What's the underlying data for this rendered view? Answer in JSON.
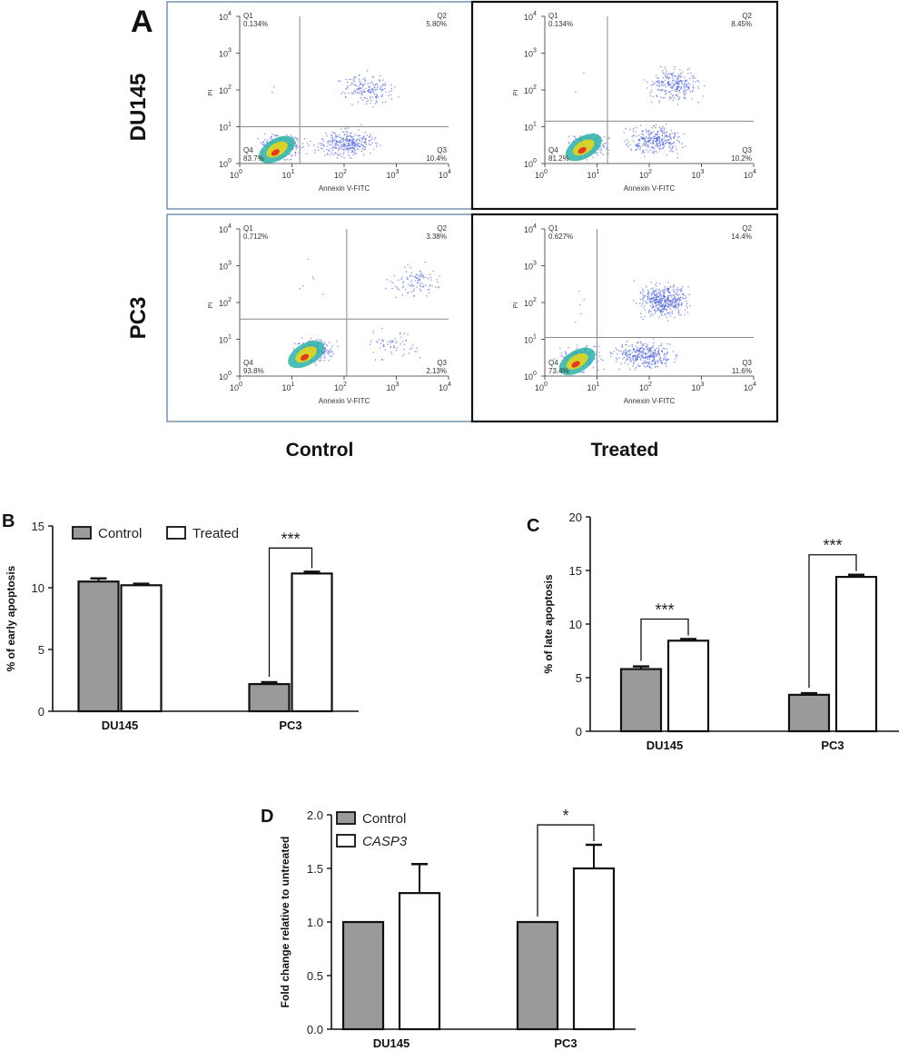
{
  "panel_labels": {
    "a": "A",
    "b": "B",
    "c": "C",
    "d": "D"
  },
  "panel_a": {
    "row_labels": [
      "DU145",
      "PC3"
    ],
    "col_labels": [
      "Control",
      "Treated"
    ],
    "xlabel": "Annexin V-FITC",
    "ylabel": "PI",
    "decade_labels": [
      "10",
      "10",
      "10",
      "10",
      "10"
    ],
    "decade_exps": [
      "0",
      "1",
      "2",
      "3",
      "4"
    ],
    "quadrant_names": [
      "Q1",
      "Q2",
      "Q3",
      "Q4"
    ],
    "colors": {
      "control_border": "#7f97b5",
      "treated_border": "#111111",
      "gate": "#8a8a8a"
    }
  },
  "chart_data": [
    {
      "type": "scatter",
      "panel": "A",
      "plots": [
        {
          "row": "DU145",
          "col": "Control",
          "q1": "0.134%",
          "q2": "5.80%",
          "q3": "10.4%",
          "q4": "83.7%",
          "gate_x": 1.15,
          "gate_y": 1.0,
          "xlim_log10": [
            0,
            4
          ],
          "ylim_log10": [
            0,
            4
          ]
        },
        {
          "row": "DU145",
          "col": "Treated",
          "q1": "0.134%",
          "q2": "8.45%",
          "q3": "10.2%",
          "q4": "81.2%",
          "gate_x": 1.2,
          "gate_y": 1.15,
          "xlim_log10": [
            0,
            4
          ],
          "ylim_log10": [
            0,
            4
          ]
        },
        {
          "row": "PC3",
          "col": "Control",
          "q1": "0.712%",
          "q2": "3.38%",
          "q3": "2.13%",
          "q4": "93.8%",
          "gate_x": 2.05,
          "gate_y": 1.55,
          "xlim_log10": [
            0,
            4
          ],
          "ylim_log10": [
            0,
            4
          ]
        },
        {
          "row": "PC3",
          "col": "Treated",
          "q1": "0.627%",
          "q2": "14.4%",
          "q3": "11.6%",
          "q4": "73.4%",
          "gate_x": 1.0,
          "gate_y": 1.05,
          "xlim_log10": [
            0,
            4
          ],
          "ylim_log10": [
            0,
            4
          ]
        }
      ]
    },
    {
      "type": "bar",
      "panel": "B",
      "categories": [
        "DU145",
        "PC3"
      ],
      "series": [
        {
          "name": "Control",
          "values": [
            10.5,
            2.2
          ],
          "errors": [
            0.25,
            0.15
          ]
        },
        {
          "name": "Treated",
          "values": [
            10.2,
            11.15
          ],
          "errors": [
            0.12,
            0.15
          ]
        }
      ],
      "ylabel": "% of early apoptosis",
      "ylim": [
        0,
        15
      ],
      "yticks": [
        "0",
        "5",
        "10",
        "15"
      ],
      "significance": [
        {
          "category": "PC3",
          "label": "***"
        }
      ],
      "legend": "top-left"
    },
    {
      "type": "bar",
      "panel": "C",
      "categories": [
        "DU145",
        "PC3"
      ],
      "series": [
        {
          "name": "Control",
          "values": [
            5.8,
            3.4
          ],
          "errors": [
            0.25,
            0.15
          ]
        },
        {
          "name": "Treated",
          "values": [
            8.45,
            14.4
          ],
          "errors": [
            0.15,
            0.2
          ]
        }
      ],
      "ylabel": "% of late apoptosis",
      "ylim": [
        0,
        20
      ],
      "yticks": [
        "0",
        "5",
        "10",
        "15",
        "20"
      ],
      "significance": [
        {
          "category": "DU145",
          "label": "***"
        },
        {
          "category": "PC3",
          "label": "***"
        }
      ]
    },
    {
      "type": "bar",
      "panel": "D",
      "categories": [
        "DU145",
        "PC3"
      ],
      "series": [
        {
          "name": "Control",
          "values": [
            1.0,
            1.0
          ],
          "errors": [
            0,
            0
          ]
        },
        {
          "name": "CASP3",
          "values": [
            1.27,
            1.5
          ],
          "errors": [
            0.27,
            0.22
          ]
        }
      ],
      "ylabel": "Fold change relative to untreated",
      "ylim": [
        0,
        2.0
      ],
      "yticks": [
        "0.0",
        "0.5",
        "1.0",
        "1.5",
        "2.0"
      ],
      "significance": [
        {
          "category": "PC3",
          "label": "*"
        }
      ],
      "legend": "top-left"
    }
  ],
  "colors": {
    "control_bar": "#9a9a9a",
    "treated_bar": "#ffffff",
    "ink": "#111111"
  }
}
